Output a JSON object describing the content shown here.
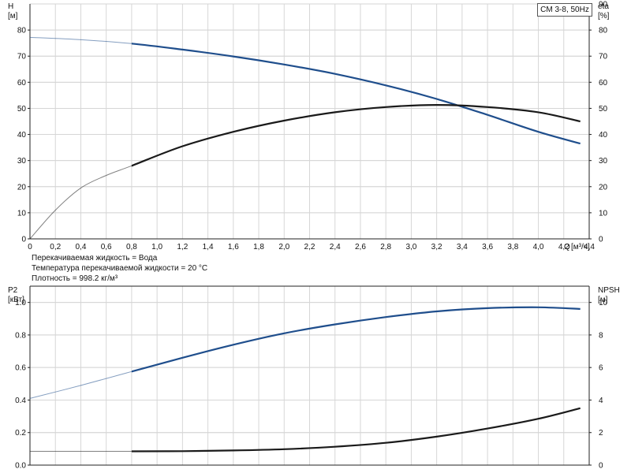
{
  "chart_data": [
    {
      "type": "line",
      "legend_label": "CM 3-8, 50Hz",
      "x_axis": {
        "label": "Q",
        "unit": "[м³/ч]",
        "range": [
          0,
          4.4
        ],
        "ticks": [
          "0",
          "0,2",
          "0,4",
          "0,6",
          "0,8",
          "1,0",
          "1,2",
          "1,4",
          "1,6",
          "1,8",
          "2,0",
          "2,2",
          "2,4",
          "2,6",
          "2,8",
          "3,0",
          "3,2",
          "3,4",
          "3,6",
          "3,8",
          "4,0",
          "4,2",
          "4,4"
        ]
      },
      "left_axis": {
        "label": "H",
        "unit": "[м]",
        "range": [
          0,
          90
        ],
        "ticks": [
          "0",
          "10",
          "20",
          "30",
          "40",
          "50",
          "60",
          "70",
          "80"
        ]
      },
      "right_axis": {
        "label": "eta",
        "unit": "[%]",
        "range": [
          0,
          90
        ],
        "ticks": [
          "0",
          "10",
          "20",
          "30",
          "40",
          "50",
          "60",
          "70",
          "80",
          "90"
        ]
      },
      "grid": true,
      "series": [
        {
          "axis": "left",
          "color": "#1f4e8c",
          "x": [
            0,
            0.4,
            0.8,
            1.2,
            1.6,
            2.0,
            2.4,
            2.8,
            3.2,
            3.6,
            4.0,
            4.33
          ],
          "y": [
            77.2,
            76.3,
            74.8,
            72.5,
            69.9,
            66.8,
            63.2,
            58.8,
            53.6,
            47.5,
            41.0,
            36.5
          ]
        },
        {
          "axis": "right",
          "color": "#1a1a1a",
          "x": [
            0,
            0.2,
            0.4,
            0.6,
            0.8,
            1.2,
            1.6,
            2.0,
            2.4,
            2.8,
            3.2,
            3.6,
            4.0,
            4.33
          ],
          "y": [
            0,
            11.0,
            19.5,
            24.3,
            28.0,
            35.5,
            41.0,
            45.3,
            48.5,
            50.5,
            51.3,
            50.5,
            48.5,
            45.0
          ]
        }
      ]
    },
    {
      "type": "line",
      "x_axis": {
        "range": [
          0,
          4.4
        ]
      },
      "left_axis": {
        "label": "P2",
        "unit": "[кВт]",
        "range": [
          0,
          1.1
        ],
        "ticks": [
          "0.0",
          "0.2",
          "0.4",
          "0.6",
          "0.8",
          "1.0"
        ]
      },
      "right_axis": {
        "label": "NPSH",
        "unit": "[м]",
        "range": [
          0,
          11
        ],
        "ticks": [
          "0",
          "2",
          "4",
          "6",
          "8",
          "10"
        ]
      },
      "grid": true,
      "series": [
        {
          "axis": "left",
          "color": "#1f4e8c",
          "x": [
            0,
            0.4,
            0.8,
            1.2,
            1.6,
            2.0,
            2.4,
            2.8,
            3.2,
            3.6,
            4.0,
            4.33
          ],
          "y": [
            0.41,
            0.49,
            0.575,
            0.66,
            0.74,
            0.81,
            0.865,
            0.91,
            0.945,
            0.965,
            0.97,
            0.96
          ]
        },
        {
          "axis": "right",
          "color": "#1a1a1a",
          "x": [
            0,
            0.8,
            1.2,
            1.6,
            2.0,
            2.4,
            2.8,
            3.2,
            3.6,
            4.0,
            4.33
          ],
          "y": [
            0.85,
            0.85,
            0.86,
            0.9,
            0.98,
            1.13,
            1.37,
            1.75,
            2.25,
            2.85,
            3.5
          ]
        }
      ]
    }
  ],
  "notes": {
    "liquid": "Перекачиваемая жидкость = Вода",
    "temperature": "Температура перекачиваемой жидкости = 20 °C",
    "density": "Плотность = 998.2 кг/м³"
  }
}
